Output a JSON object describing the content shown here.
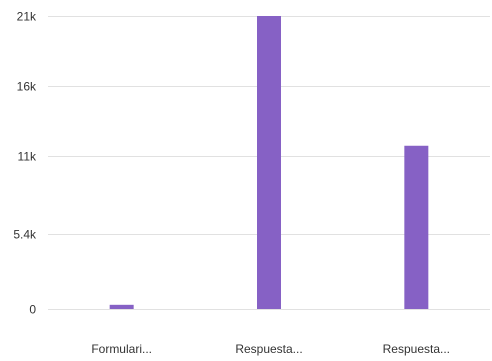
{
  "chart_data": {
    "type": "bar",
    "categories": [
      "Formulari...",
      "Respuesta...",
      "Respuesta..."
    ],
    "values": [
      300,
      21000,
      11700
    ],
    "y_ticks": [
      0,
      5400,
      11000,
      16000,
      21000
    ],
    "y_tick_labels": [
      "0",
      "5.4k",
      "11k",
      "16k",
      "21k"
    ],
    "ylim": [
      0,
      21000
    ],
    "title": "",
    "xlabel": "",
    "ylabel": "",
    "grid": true,
    "legend": "none",
    "colors": {
      "bar": "#8661c5",
      "grid": "#e1e1e1",
      "text": "#333333"
    }
  }
}
